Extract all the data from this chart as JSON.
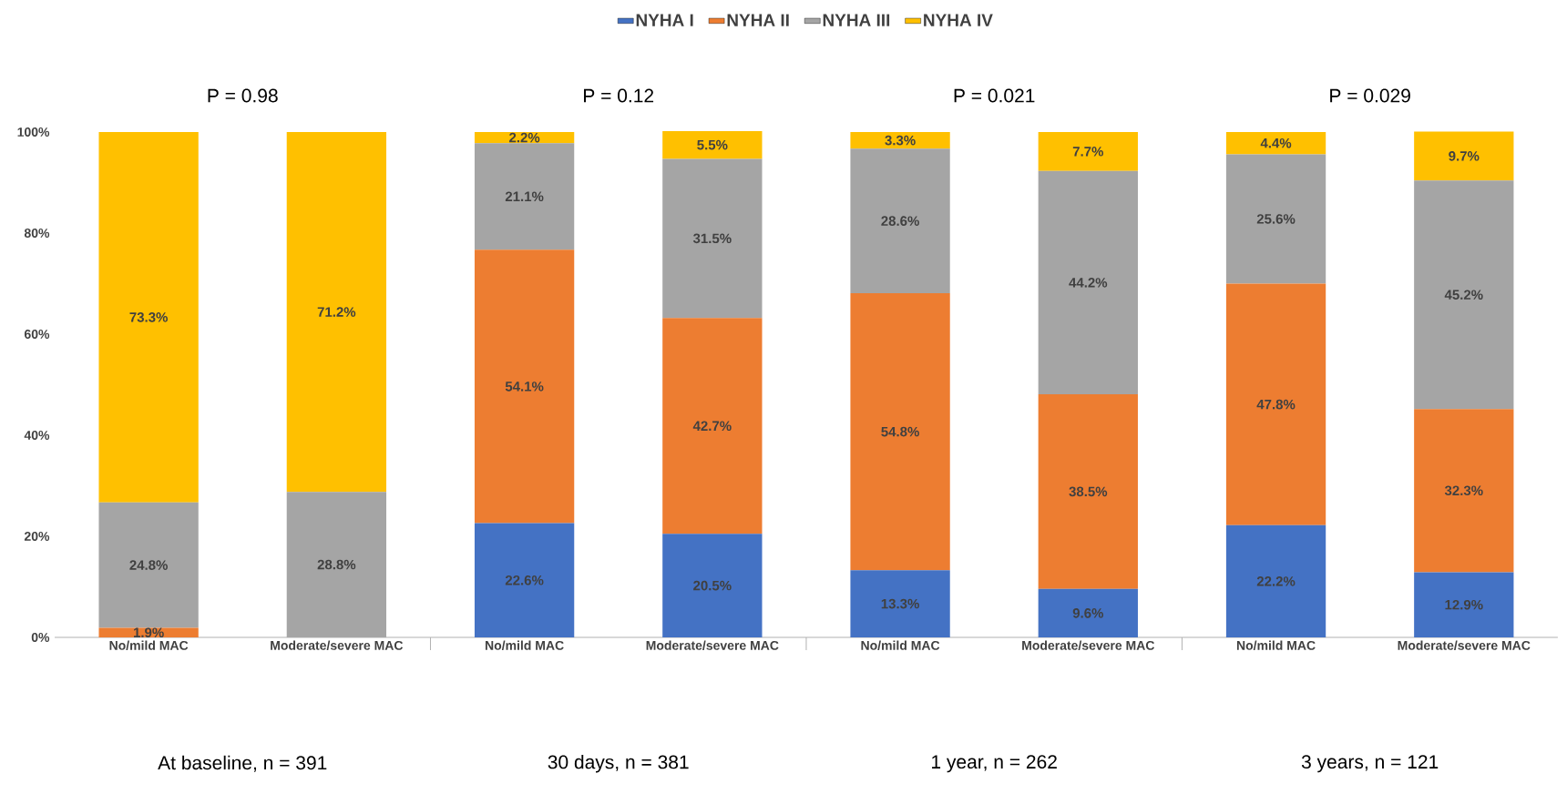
{
  "chart_data": {
    "type": "bar",
    "stacked": true,
    "categories": [
      "No/mild MAC",
      "Moderate/severe MAC",
      "No/mild MAC",
      "Moderate/severe MAC",
      "No/mild MAC",
      "Moderate/severe MAC",
      "No/mild MAC",
      "Moderate/severe MAC"
    ],
    "series": [
      {
        "name": "NYHA I",
        "color": "#4472c4",
        "values": [
          0,
          0,
          22.6,
          20.5,
          13.3,
          9.6,
          22.2,
          12.9
        ],
        "value_labels": [
          null,
          null,
          "22.6%",
          "20.5%",
          "13.3%",
          "9.6%",
          "22.2%",
          "12.9%"
        ]
      },
      {
        "name": "NYHA II",
        "color": "#ed7d31",
        "values": [
          1.9,
          0,
          54.1,
          42.7,
          54.8,
          38.5,
          47.8,
          32.3
        ],
        "value_labels": [
          "1.9%",
          null,
          "54.1%",
          "42.7%",
          "54.8%",
          "38.5%",
          "47.8%",
          "32.3%"
        ]
      },
      {
        "name": "NYHA III",
        "color": "#a5a5a5",
        "values": [
          24.8,
          28.8,
          21.1,
          31.5,
          28.6,
          44.2,
          25.6,
          45.2
        ],
        "value_labels": [
          "24.8%",
          "28.8%",
          "21.1%",
          "31.5%",
          "28.6%",
          "44.2%",
          "25.6%",
          "45.2%"
        ]
      },
      {
        "name": "NYHA IV",
        "color": "#ffc000",
        "values": [
          73.3,
          71.2,
          2.2,
          5.5,
          3.3,
          7.7,
          4.4,
          9.7
        ],
        "value_labels": [
          "73.3%",
          "71.2%",
          "2.2%",
          "5.5%",
          "3.3%",
          "7.7%",
          "4.4%",
          "9.7%"
        ]
      }
    ],
    "ylim": [
      0,
      100
    ],
    "yticks": [
      {
        "value": 0,
        "label": "0%"
      },
      {
        "value": 20,
        "label": "20%"
      },
      {
        "value": 40,
        "label": "40%"
      },
      {
        "value": 60,
        "label": "60%"
      },
      {
        "value": 80,
        "label": "80%"
      },
      {
        "value": 100,
        "label": "100%"
      }
    ],
    "legend": "top",
    "annotations": [
      "P = 0.98",
      "P = 0.12",
      "P = 0.021",
      "P = 0.029",
      "At baseline, n = 391",
      "30 days, n = 381",
      "1 year, n = 262",
      "3 years, n = 121"
    ]
  }
}
